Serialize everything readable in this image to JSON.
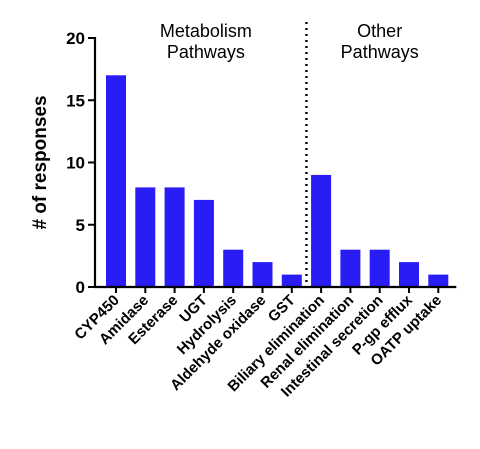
{
  "chart_data": {
    "type": "bar",
    "categories": [
      "CYP450",
      "Amidase",
      "Esterase",
      "UGT",
      "Hydrolysis",
      "Aldehyde oxidase",
      "GST",
      "Biliary elimination",
      "Renal elimination",
      "Intestinal secretion",
      "P-gp efflux",
      "OATP uptake"
    ],
    "values": [
      17,
      8,
      8,
      7,
      3,
      2,
      1,
      9,
      3,
      3,
      2,
      1
    ],
    "ylabel": "# of responses",
    "xlabel": "",
    "ylim": [
      0,
      20
    ],
    "yticks": [
      0,
      5,
      10,
      15,
      20
    ],
    "bar_color": "#2a1cf5",
    "groups": [
      {
        "label_lines": [
          "Metabolism",
          "Pathways"
        ],
        "start": 0,
        "end": 6
      },
      {
        "label_lines": [
          "Other",
          "Pathways"
        ],
        "start": 7,
        "end": 11
      }
    ],
    "divider_style": "dotted vertical line between groups",
    "grid": false,
    "legend": "none"
  }
}
